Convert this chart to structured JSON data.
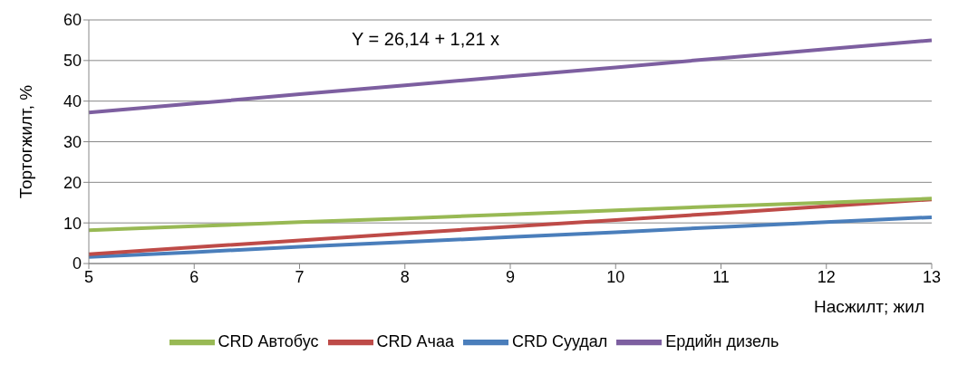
{
  "chart_data": {
    "type": "line",
    "xlabel": "Насжилт; жил",
    "ylabel": "Тортогжилт, %",
    "categories": [
      "5",
      "6",
      "7",
      "8",
      "9",
      "10",
      "11",
      "12",
      "13"
    ],
    "series": [
      {
        "name": "CRD Суудал",
        "color": "#4a7ebb",
        "values": [
          1.6,
          2.8,
          4.1,
          5.3,
          6.5,
          7.7,
          9.0,
          10.2,
          11.4
        ]
      },
      {
        "name": "CRD Ачаа",
        "color": "#be4b48",
        "values": [
          2.3,
          4.0,
          5.7,
          7.4,
          9.1,
          10.7,
          12.4,
          14.1,
          15.8
        ]
      },
      {
        "name": "CRD  Автобус",
        "color": "#98b954",
        "values": [
          8.2,
          9.2,
          10.2,
          11.1,
          12.1,
          13.1,
          14.1,
          15.0,
          16.0
        ]
      },
      {
        "name": "Ердийн дизель",
        "color": "#7d5fa0",
        "values": [
          37.2,
          39.4,
          41.7,
          43.9,
          46.1,
          48.3,
          50.6,
          52.8,
          55.0
        ]
      }
    ],
    "ylim": [
      0,
      60
    ],
    "yticks": [
      0,
      10,
      20,
      30,
      40,
      50,
      60
    ],
    "grid": "y",
    "legend": "bottom",
    "marker": "none",
    "line_style": "solid",
    "annotations": [
      "Y = 26,14 + 1,21 x"
    ]
  }
}
